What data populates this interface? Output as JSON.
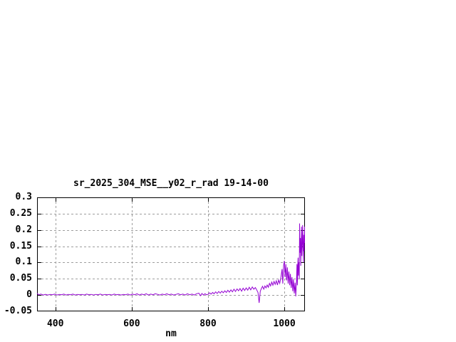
{
  "chart_data": {
    "type": "line",
    "title": "sr_2025_304_MSE__y02_r_rad 19-14-00",
    "xlabel": "nm",
    "ylabel": "",
    "xlim": [
      352,
      1054
    ],
    "ylim": [
      -0.05,
      0.3
    ],
    "grid": true,
    "legend": "none",
    "xticks": {
      "values": [
        400,
        600,
        800,
        1000
      ],
      "labels": [
        "400",
        "600",
        "800",
        "1000"
      ]
    },
    "yticks": {
      "values": [
        -0.05,
        0,
        0.05,
        0.1,
        0.15,
        0.2,
        0.25,
        0.3
      ],
      "labels": [
        "-0.05",
        "0",
        "0.05",
        "0.1",
        "0.15",
        "0.2",
        "0.25",
        "0.3"
      ]
    },
    "colors": {
      "line": "#9400d3",
      "grid": "#9e9e9e",
      "border": "#000000",
      "background": "#ffffff",
      "text": "#000000"
    },
    "series": [
      {
        "name": "sr_2025_304_MSE__y02_r_rad 19-14-00",
        "color": "#9400d3",
        "points": [
          [
            352,
            0.006
          ],
          [
            356,
            0.001
          ],
          [
            362,
            0.003
          ],
          [
            368,
            0.0
          ],
          [
            374,
            0.002
          ],
          [
            380,
            0.0
          ],
          [
            386,
            0.002
          ],
          [
            392,
            0.001
          ],
          [
            398,
            0.003
          ],
          [
            404,
            0.0
          ],
          [
            410,
            0.002
          ],
          [
            416,
            0.001
          ],
          [
            422,
            0.003
          ],
          [
            428,
            0.0
          ],
          [
            434,
            0.002
          ],
          [
            440,
            0.001
          ],
          [
            446,
            0.003
          ],
          [
            452,
            0.0
          ],
          [
            458,
            0.002
          ],
          [
            464,
            0.001
          ],
          [
            470,
            0.002
          ],
          [
            476,
            0.0
          ],
          [
            482,
            0.003
          ],
          [
            488,
            0.001
          ],
          [
            494,
            0.002
          ],
          [
            500,
            0.0
          ],
          [
            506,
            0.002
          ],
          [
            512,
            0.001
          ],
          [
            518,
            0.003
          ],
          [
            524,
            0.0
          ],
          [
            530,
            0.002
          ],
          [
            536,
            0.001
          ],
          [
            542,
            0.002
          ],
          [
            548,
            0.0
          ],
          [
            554,
            0.003
          ],
          [
            560,
            0.001
          ],
          [
            566,
            0.002
          ],
          [
            572,
            0.0
          ],
          [
            578,
            0.002
          ],
          [
            584,
            0.001
          ],
          [
            590,
            0.003
          ],
          [
            596,
            0.0
          ],
          [
            602,
            0.003
          ],
          [
            608,
            0.001
          ],
          [
            614,
            0.004
          ],
          [
            620,
            0.0
          ],
          [
            626,
            0.003
          ],
          [
            632,
            0.001
          ],
          [
            638,
            0.004
          ],
          [
            644,
            0.0
          ],
          [
            650,
            0.003
          ],
          [
            656,
            0.001
          ],
          [
            662,
            0.004
          ],
          [
            668,
            0.002
          ],
          [
            674,
            0.0
          ],
          [
            680,
            0.003
          ],
          [
            686,
            0.001
          ],
          [
            692,
            0.004
          ],
          [
            698,
            0.001
          ],
          [
            704,
            0.003
          ],
          [
            710,
            0.0
          ],
          [
            716,
            0.002
          ],
          [
            722,
            0.004
          ],
          [
            728,
            0.001
          ],
          [
            734,
            0.003
          ],
          [
            740,
            0.0
          ],
          [
            746,
            0.004
          ],
          [
            752,
            0.001
          ],
          [
            758,
            0.003
          ],
          [
            764,
            0.0
          ],
          [
            770,
            0.004
          ],
          [
            776,
            0.006
          ],
          [
            780,
            -0.002
          ],
          [
            784,
            0.005
          ],
          [
            788,
            0.0
          ],
          [
            792,
            0.004
          ],
          [
            796,
            0.001
          ],
          [
            800,
            0.002
          ],
          [
            804,
            0.007
          ],
          [
            808,
            0.003
          ],
          [
            812,
            0.008
          ],
          [
            816,
            0.004
          ],
          [
            820,
            0.01
          ],
          [
            824,
            0.005
          ],
          [
            828,
            0.011
          ],
          [
            832,
            0.006
          ],
          [
            836,
            0.012
          ],
          [
            840,
            0.007
          ],
          [
            844,
            0.013
          ],
          [
            848,
            0.008
          ],
          [
            852,
            0.015
          ],
          [
            856,
            0.009
          ],
          [
            860,
            0.016
          ],
          [
            864,
            0.01
          ],
          [
            868,
            0.018
          ],
          [
            872,
            0.011
          ],
          [
            876,
            0.019
          ],
          [
            880,
            0.013
          ],
          [
            884,
            0.02
          ],
          [
            888,
            0.012
          ],
          [
            892,
            0.021
          ],
          [
            896,
            0.014
          ],
          [
            900,
            0.022
          ],
          [
            904,
            0.015
          ],
          [
            908,
            0.024
          ],
          [
            912,
            0.016
          ],
          [
            916,
            0.025
          ],
          [
            920,
            0.018
          ],
          [
            924,
            0.023
          ],
          [
            928,
            0.015
          ],
          [
            931,
            0.008
          ],
          [
            934,
            -0.024
          ],
          [
            937,
            0.012
          ],
          [
            940,
            0.02
          ],
          [
            943,
            0.027
          ],
          [
            946,
            0.018
          ],
          [
            949,
            0.028
          ],
          [
            952,
            0.022
          ],
          [
            955,
            0.031
          ],
          [
            958,
            0.024
          ],
          [
            961,
            0.036
          ],
          [
            964,
            0.028
          ],
          [
            967,
            0.04
          ],
          [
            970,
            0.03
          ],
          [
            973,
            0.042
          ],
          [
            976,
            0.033
          ],
          [
            979,
            0.044
          ],
          [
            982,
            0.031
          ],
          [
            985,
            0.046
          ],
          [
            988,
            0.036
          ],
          [
            991,
            0.055
          ],
          [
            994,
            0.08
          ],
          [
            996,
            0.035
          ],
          [
            998,
            0.09
          ],
          [
            1000,
            0.105
          ],
          [
            1002,
            0.055
          ],
          [
            1004,
            0.095
          ],
          [
            1006,
            0.045
          ],
          [
            1008,
            0.085
          ],
          [
            1010,
            0.035
          ],
          [
            1012,
            0.072
          ],
          [
            1014,
            0.03
          ],
          [
            1016,
            0.065
          ],
          [
            1018,
            0.022
          ],
          [
            1020,
            0.055
          ],
          [
            1022,
            0.012
          ],
          [
            1024,
            0.048
          ],
          [
            1026,
            0.005
          ],
          [
            1028,
            0.038
          ],
          [
            1030,
            -0.004
          ],
          [
            1032,
            0.045
          ],
          [
            1033,
            0.095
          ],
          [
            1034,
            0.03
          ],
          [
            1035,
            0.085
          ],
          [
            1036,
            0.115
          ],
          [
            1037,
            0.06
          ],
          [
            1038,
            0.1
          ],
          [
            1039,
            0.05
          ],
          [
            1040,
            0.22
          ],
          [
            1041,
            0.13
          ],
          [
            1042,
            0.175
          ],
          [
            1043,
            0.09
          ],
          [
            1044,
            0.145
          ],
          [
            1045,
            0.21
          ],
          [
            1046,
            0.12
          ],
          [
            1047,
            0.16
          ],
          [
            1048,
            0.215
          ],
          [
            1049,
            0.155
          ],
          [
            1050,
            0.1
          ],
          [
            1051,
            0.185
          ],
          [
            1052,
            0.135
          ],
          [
            1053,
            0.21
          ],
          [
            1054,
            0.16
          ]
        ]
      }
    ]
  }
}
